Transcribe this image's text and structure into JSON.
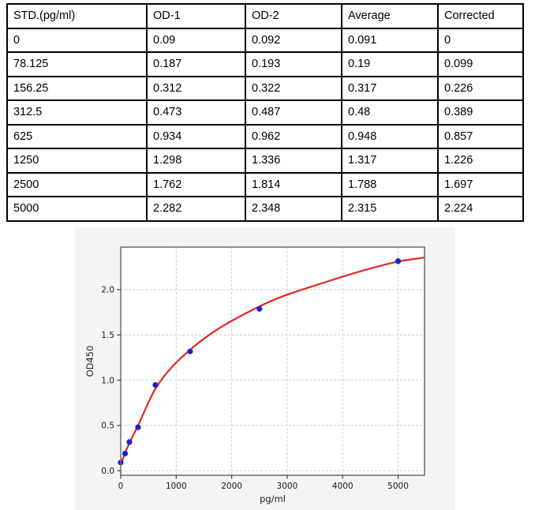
{
  "table": {
    "columns": [
      "STD.(pg/ml)",
      "OD-1",
      "OD-2",
      "Average",
      "Corrected"
    ],
    "rows": [
      [
        "0",
        "0.09",
        "0.092",
        "0.091",
        "0"
      ],
      [
        "78.125",
        "0.187",
        "0.193",
        "0.19",
        "0.099"
      ],
      [
        "156.25",
        "0.312",
        "0.322",
        "0.317",
        "0.226"
      ],
      [
        "312.5",
        "0.473",
        "0.487",
        "0.48",
        "0.389"
      ],
      [
        "625",
        "0.934",
        "0.962",
        "0.948",
        "0.857"
      ],
      [
        "1250",
        "1.298",
        "1.336",
        "1.317",
        "1.226"
      ],
      [
        "2500",
        "1.762",
        "1.814",
        "1.788",
        "1.697"
      ],
      [
        "5000",
        "2.282",
        "2.348",
        "2.315",
        "2.224"
      ]
    ]
  },
  "chart_data": {
    "type": "scatter",
    "title": "",
    "xlabel": "pg/ml",
    "ylabel": "OD450",
    "x": [
      0,
      78.125,
      156.25,
      312.5,
      625,
      1250,
      2500,
      5000
    ],
    "y": [
      0.091,
      0.19,
      0.317,
      0.48,
      0.948,
      1.317,
      1.788,
      2.315
    ],
    "fit_curve": [
      [
        0,
        0.075
      ],
      [
        78.125,
        0.195
      ],
      [
        156.25,
        0.305
      ],
      [
        312.5,
        0.5
      ],
      [
        625,
        0.905
      ],
      [
        1250,
        1.335
      ],
      [
        2500,
        1.815
      ],
      [
        3750,
        2.095
      ],
      [
        5000,
        2.31
      ],
      [
        5476,
        2.355
      ]
    ],
    "xlim": [
      0,
      5476
    ],
    "ylim": [
      -0.05,
      2.47
    ],
    "xticks": [
      0,
      1000,
      2000,
      3000,
      4000,
      5000
    ],
    "yticks": [
      0,
      0.5,
      1,
      1.5,
      2
    ],
    "grid": true,
    "legend": false,
    "colors": {
      "point": "#2020d0",
      "curve": "#e62525",
      "panel_bg": "#f4f4f4",
      "plot_bg": "#ffffff",
      "grid": "#c9c9c9",
      "spine": "#6b6b6b",
      "text": "#1a1a1a"
    }
  }
}
